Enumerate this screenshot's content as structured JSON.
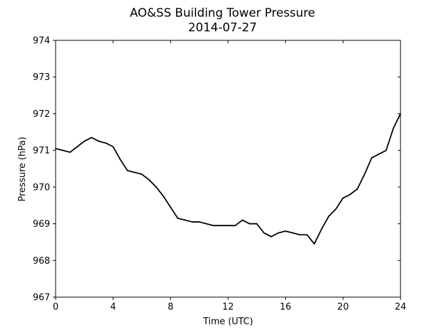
{
  "chart_data": {
    "type": "line",
    "title": "AO&SS Building Tower Pressure",
    "subtitle": "2014-07-27",
    "xlabel": "Time (UTC)",
    "ylabel": "Pressure (hPa)",
    "xlim": [
      0,
      24
    ],
    "ylim": [
      967,
      974
    ],
    "x_ticks": [
      "0",
      "4",
      "8",
      "12",
      "16",
      "20",
      "24"
    ],
    "y_ticks": [
      "967",
      "968",
      "969",
      "970",
      "971",
      "972",
      "973",
      "974"
    ],
    "grid": false,
    "legend": "none",
    "line_color": "#000000",
    "series": [
      {
        "x": [
          0,
          0.5,
          1,
          1.5,
          2,
          2.5,
          3,
          3.5,
          4,
          4.5,
          5,
          5.5,
          6,
          6.5,
          7,
          7.5,
          8,
          8.5,
          9,
          9.5,
          10,
          10.5,
          11,
          11.5,
          12,
          12.5,
          13,
          13.5,
          14,
          14.5,
          15,
          15.5,
          16,
          16.5,
          17,
          17.5,
          18,
          18.5,
          19,
          19.5,
          20,
          20.5,
          21,
          21.5,
          22,
          22.5,
          23,
          23.5,
          24
        ],
        "values": [
          971.05,
          971.0,
          970.95,
          971.1,
          971.25,
          971.35,
          971.25,
          971.2,
          971.1,
          970.75,
          970.45,
          970.4,
          970.35,
          970.2,
          970.0,
          969.75,
          969.45,
          969.15,
          969.1,
          969.05,
          969.05,
          969.0,
          968.95,
          968.95,
          968.95,
          968.95,
          969.1,
          969.0,
          969.0,
          968.75,
          968.65,
          968.75,
          968.8,
          968.75,
          968.7,
          968.7,
          968.45,
          968.85,
          969.2,
          969.4,
          969.7,
          969.8,
          969.95,
          970.35,
          970.8,
          970.9,
          971.0,
          971.6,
          972.0
        ]
      }
    ]
  }
}
